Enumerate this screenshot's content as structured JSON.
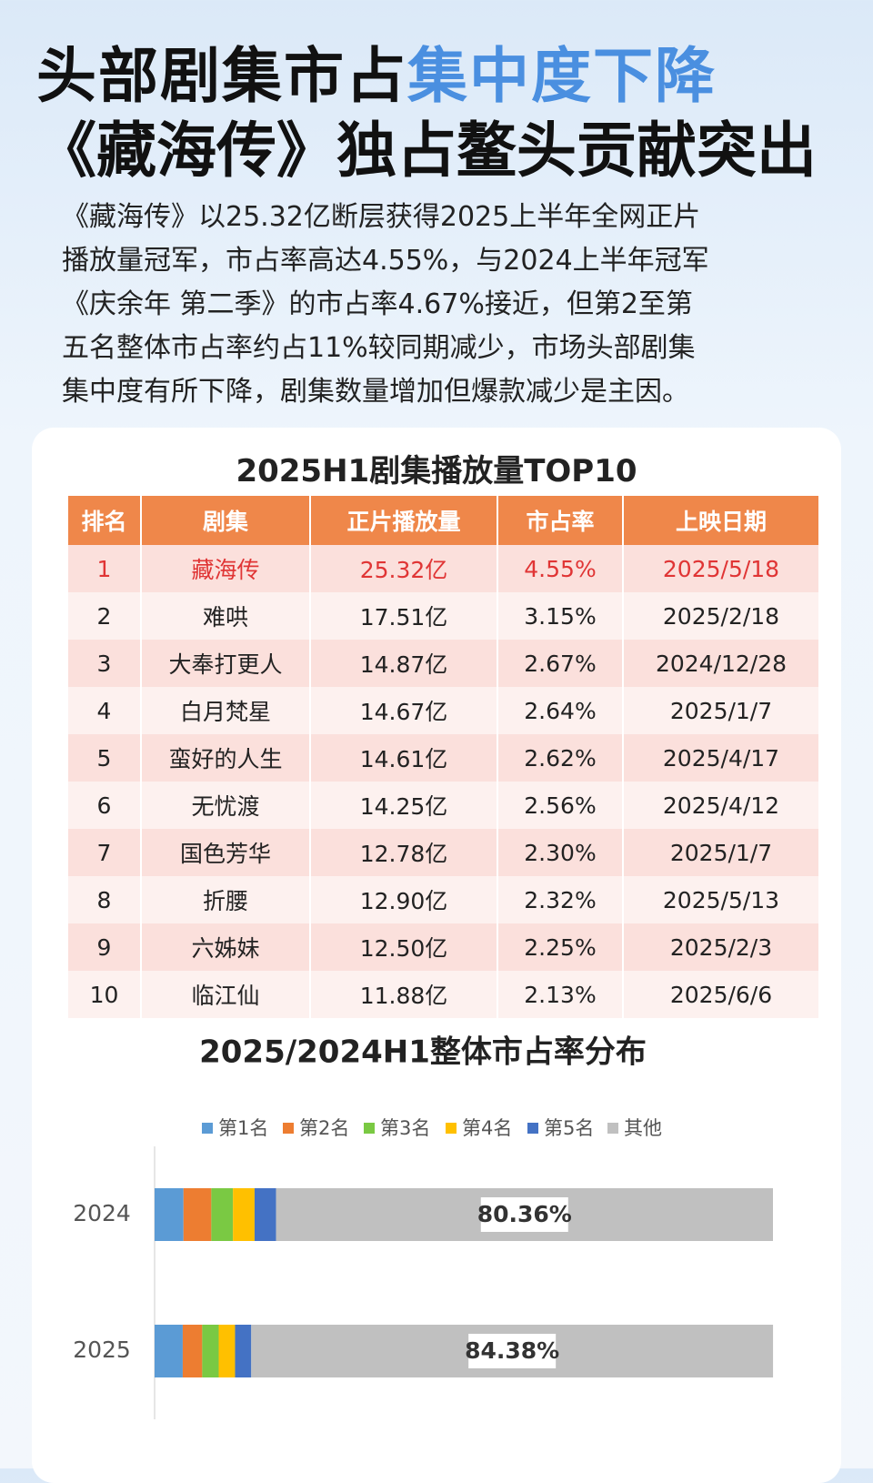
{
  "header": {
    "title_part1": "头部剧集市占",
    "title_part2": "集中度下降",
    "title_line2": "《藏海传》独占鳌头贡献突出"
  },
  "paragraph": {
    "lines": [
      "《藏海传》以25.32亿断层获得2025上半年全网正片",
      "播放量冠军，市占率高达4.55%，与2024上半年冠军",
      "《庆余年  第二季》的市占率4.67%接近，但第2至第",
      "五名整体市占率约占11%较同期减少，市场头部剧集",
      "集中度有所下降，剧集数量增加但爆款减少是主因。"
    ]
  },
  "table": {
    "title": "2025H1剧集播放量TOP10",
    "header": [
      "排名",
      "剧集",
      "正片播放量",
      "市占率",
      "上映日期"
    ],
    "rows": [
      [
        "1",
        "藏海传",
        "25.32亿",
        "4.55%",
        "2025/5/18"
      ],
      [
        "2",
        "难哄",
        "17.51亿",
        "3.15%",
        "2025/2/18"
      ],
      [
        "3",
        "大奉打更人",
        "14.87亿",
        "2.67%",
        "2024/12/28"
      ],
      [
        "4",
        "白月梵星",
        "14.67亿",
        "2.64%",
        "2025/1/7"
      ],
      [
        "5",
        "蛮好的人生",
        "14.61亿",
        "2.62%",
        "2025/4/17"
      ],
      [
        "6",
        "无忧渡",
        "14.25亿",
        "2.56%",
        "2025/4/12"
      ],
      [
        "7",
        "国色芳华",
        "12.78亿",
        "2.30%",
        "2025/1/7"
      ],
      [
        "8",
        "折腰",
        "12.90亿",
        "2.32%",
        "2025/5/13"
      ],
      [
        "9",
        "六姊妹",
        "12.50亿",
        "2.25%",
        "2025/2/3"
      ],
      [
        "10",
        "临江仙",
        "11.88亿",
        "2.13%",
        "2025/6/6"
      ]
    ]
  },
  "chart_data": {
    "type": "stacked-barh",
    "title": "2025/2024H1整体市占率分布",
    "categories": [
      "2024",
      "2025"
    ],
    "series": [
      {
        "name": "第1名",
        "color": "#5b9bd5",
        "values": [
          4.67,
          4.55
        ]
      },
      {
        "name": "第2名",
        "color": "#ed7d31",
        "values": [
          4.5,
          3.15
        ]
      },
      {
        "name": "第3名",
        "color": "#7ac943",
        "values": [
          3.5,
          2.67
        ]
      },
      {
        "name": "第4名",
        "color": "#ffc000",
        "values": [
          3.5,
          2.64
        ]
      },
      {
        "name": "第5名",
        "color": "#4472c4",
        "values": [
          3.47,
          2.62
        ]
      },
      {
        "name": "其他",
        "color": "#c0c0c0",
        "values": [
          80.36,
          84.38
        ],
        "value_labels": [
          "80.36%",
          "84.38%"
        ]
      }
    ],
    "xlim": [
      0,
      100
    ]
  }
}
